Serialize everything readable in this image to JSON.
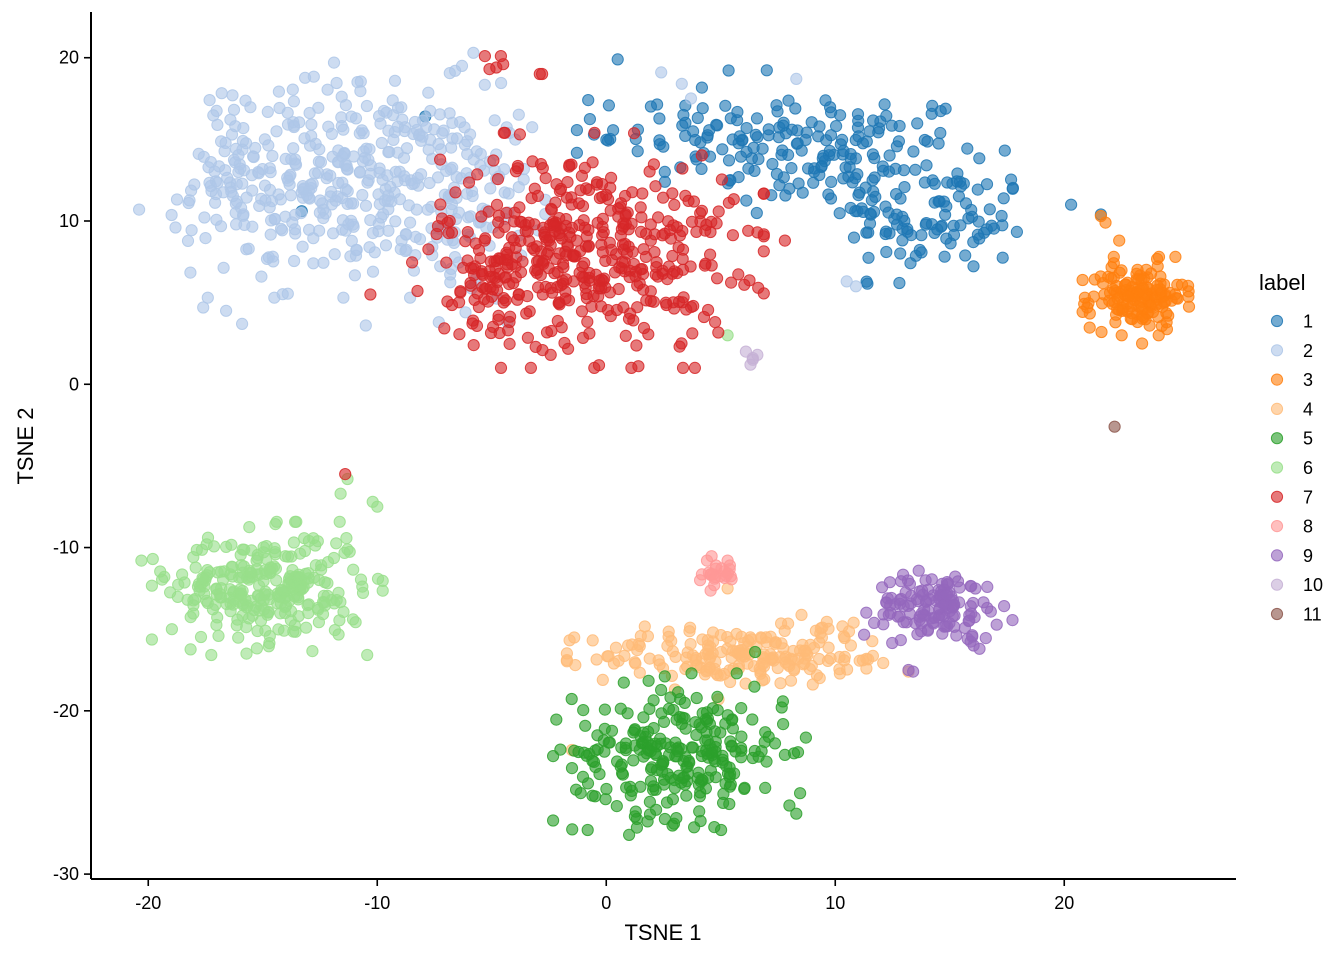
{
  "chart_data": {
    "type": "scatter",
    "title": "",
    "xlabel": "TSNE 1",
    "ylabel": "TSNE 2",
    "xlim": [
      -22.5,
      27.5
    ],
    "ylim": [
      -30.3,
      22.8
    ],
    "xticks": [
      -20,
      -10,
      0,
      10,
      20
    ],
    "yticks": [
      -30,
      -20,
      -10,
      0,
      10,
      20
    ],
    "grid": false,
    "legend": {
      "title": "label",
      "placement": "right"
    },
    "series": [
      {
        "name": "1",
        "color": "#1f77b4",
        "clusters": [
          {
            "center": [
              10,
              14
            ],
            "spread": [
              3.2,
              2.0
            ],
            "n": 140
          },
          {
            "center": [
              14.5,
              10
            ],
            "spread": [
              2.0,
              1.6
            ],
            "n": 90
          },
          {
            "center": [
              4,
              15.5
            ],
            "spread": [
              2.2,
              1.6
            ],
            "n": 60
          }
        ],
        "points": [
          [
            0.5,
            19.9
          ],
          [
            -13.3,
            10.6
          ],
          [
            21.6,
            10.4
          ],
          [
            20.3,
            11
          ],
          [
            12.8,
            6.2
          ],
          [
            -7.9,
            16.4
          ]
        ]
      },
      {
        "name": "2",
        "color": "#aec7e8",
        "clusters": [
          {
            "center": [
              -11.5,
              12.5
            ],
            "spread": [
              3.2,
              3.0
            ],
            "n": 330
          },
          {
            "center": [
              -6.5,
              11
            ],
            "spread": [
              1.6,
              3.0
            ],
            "n": 90
          },
          {
            "center": [
              -16.5,
              13
            ],
            "spread": [
              1.0,
              2.0
            ],
            "n": 40
          }
        ],
        "points": [
          [
            -20.4,
            10.7
          ],
          [
            -5.8,
            20.3
          ],
          [
            -6.3,
            19.5
          ],
          [
            -6.6,
            19.2
          ],
          [
            3.3,
            18.4
          ],
          [
            8.3,
            18.7
          ],
          [
            10.5,
            6.3
          ],
          [
            10.9,
            6.0
          ],
          [
            -15.9,
            3.7
          ],
          [
            -16.6,
            4.5
          ],
          [
            -17.4,
            5.3
          ],
          [
            -17.6,
            4.7
          ],
          [
            2.4,
            19.1
          ],
          [
            3.7,
            17.5
          ],
          [
            -10.5,
            3.6
          ]
        ]
      },
      {
        "name": "3",
        "color": "#ff7f0e",
        "clusters": [
          {
            "center": [
              23.2,
              5.4
            ],
            "spread": [
              1.0,
              1.0
            ],
            "n": 150
          }
        ],
        "points": [
          [
            21.8,
            9.9
          ],
          [
            22.4,
            8.8
          ],
          [
            21.0,
            4.7
          ],
          [
            23.4,
            2.5
          ],
          [
            21.6,
            10.3
          ],
          [
            20.9,
            5.3
          ]
        ]
      },
      {
        "name": "4",
        "color": "#ffbb78",
        "clusters": [
          {
            "center": [
              5,
              -16.7
            ],
            "spread": [
              2.8,
              0.9
            ],
            "n": 150
          },
          {
            "center": [
              9.5,
              -16.2
            ],
            "spread": [
              1.6,
              1.0
            ],
            "n": 50
          }
        ],
        "points": [
          [
            -1.5,
            -22.4
          ],
          [
            5.3,
            -12.5
          ],
          [
            13.2,
            -17.6
          ],
          [
            4.9,
            -19.3
          ],
          [
            10.8,
            -14.6
          ]
        ]
      },
      {
        "name": "5",
        "color": "#2ca02c",
        "clusters": [
          {
            "center": [
              3.2,
              -22.5
            ],
            "spread": [
              2.3,
              2.0
            ],
            "n": 260
          }
        ],
        "points": [
          [
            8.3,
            -26.3
          ],
          [
            8.0,
            -25.8
          ],
          [
            1.0,
            -27.6
          ],
          [
            6.5,
            -16.4
          ],
          [
            7.8,
            -22.7
          ],
          [
            8.2,
            -22.6
          ],
          [
            -0.6,
            -25.2
          ]
        ]
      },
      {
        "name": "6",
        "color": "#98df8a",
        "clusters": [
          {
            "center": [
              -14.8,
              -12.5
            ],
            "spread": [
              2.1,
              1.7
            ],
            "n": 280
          }
        ],
        "points": [
          [
            -10.0,
            -7.5
          ],
          [
            -10.2,
            -7.2
          ],
          [
            -11.6,
            -6.7
          ],
          [
            -11.3,
            -5.8
          ],
          [
            -20.3,
            -10.8
          ],
          [
            -19.3,
            -11.8
          ],
          [
            5.3,
            3.0
          ],
          [
            -19.8,
            -10.7
          ]
        ]
      },
      {
        "name": "7",
        "color": "#d62728",
        "clusters": [
          {
            "center": [
              -0.8,
              8.2
            ],
            "spread": [
              3.2,
              3.0
            ],
            "n": 430
          },
          {
            "center": [
              -5.0,
              6.0
            ],
            "spread": [
              1.2,
              1.5
            ],
            "n": 40
          }
        ],
        "points": [
          [
            -5.3,
            20.1
          ],
          [
            -4.6,
            20.1
          ],
          [
            -4.5,
            19.6
          ],
          [
            -4.8,
            19.4
          ],
          [
            -5.1,
            19.3
          ],
          [
            -2.9,
            19.0
          ],
          [
            -2.8,
            19.0
          ],
          [
            -11.4,
            -5.5
          ],
          [
            7.8,
            8.8
          ],
          [
            6.2,
            9.4
          ],
          [
            6.6,
            9.3
          ],
          [
            -10.3,
            5.5
          ]
        ]
      },
      {
        "name": "8",
        "color": "#ff9896",
        "clusters": [
          {
            "center": [
              4.8,
              -11.6
            ],
            "spread": [
              0.45,
              0.45
            ],
            "n": 22
          }
        ],
        "points": [
          [
            5.3,
            -10.8
          ],
          [
            5.4,
            -11.1
          ],
          [
            4.1,
            -12.0
          ]
        ]
      },
      {
        "name": "9",
        "color": "#9467bd",
        "clusters": [
          {
            "center": [
              14.5,
              -13.6
            ],
            "spread": [
              1.35,
              1.0
            ],
            "n": 135
          }
        ],
        "points": [
          [
            13.4,
            -17.6
          ],
          [
            13.2,
            -17.5
          ],
          [
            12.1,
            -14.7
          ],
          [
            16.3,
            -16.2
          ]
        ]
      },
      {
        "name": "10",
        "color": "#c5b0d5",
        "clusters": [],
        "points": [
          [
            6.1,
            2.0
          ],
          [
            6.4,
            1.6
          ],
          [
            6.6,
            1.8
          ],
          [
            6.3,
            1.2
          ],
          [
            6.4,
            1.5
          ]
        ]
      },
      {
        "name": "11",
        "color": "#8c564b",
        "clusters": [],
        "points": [
          [
            22.2,
            -2.6
          ]
        ]
      }
    ]
  }
}
